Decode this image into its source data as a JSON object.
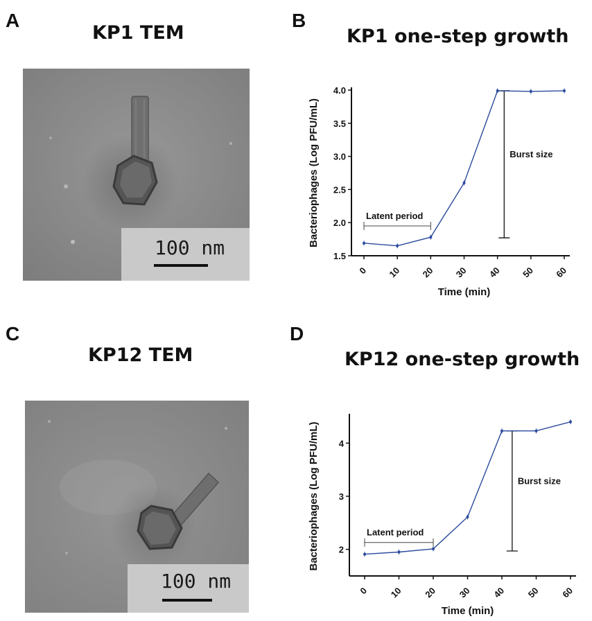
{
  "panels": {
    "a": {
      "letter": "A",
      "title": "KP1 TEM",
      "scale_label": "100  nm"
    },
    "b": {
      "letter": "B",
      "title": "KP1 one-step growth"
    },
    "c": {
      "letter": "C",
      "title": "KP12 TEM",
      "scale_label": "100  nm"
    },
    "d": {
      "letter": "D",
      "title": "KP12 one-step growth"
    }
  },
  "chart_data": [
    {
      "type": "line",
      "title": "KP1 one-step growth",
      "xlabel": "Time (min)",
      "ylabel": "Bacteriophages (Log PFU/mL)",
      "x": [
        0,
        10,
        20,
        30,
        40,
        50,
        60
      ],
      "x_tick_labels": [
        "0",
        "10",
        "20",
        "30",
        "40",
        "50",
        "60"
      ],
      "xlim": [
        0,
        60
      ],
      "ylim": [
        1.5,
        4.0
      ],
      "y_ticks": [
        1.5,
        2.0,
        2.5,
        3.0,
        3.5,
        4.0
      ],
      "y_tick_labels": [
        "1.5",
        "2.0",
        "2.5",
        "3.0",
        "3.5",
        "4.0"
      ],
      "series": [
        {
          "values": [
            1.69,
            1.65,
            1.78,
            2.6,
            3.99,
            3.98,
            3.99
          ],
          "color": "#2b4a9c"
        }
      ],
      "annotations": {
        "latent": {
          "label": "Latent period",
          "x_start": 0,
          "x_end": 20,
          "y": 1.95
        },
        "burst": {
          "label": "Burst size",
          "x": 42,
          "y_low": 1.77,
          "y_high": 3.99
        }
      },
      "grid": false
    },
    {
      "type": "line",
      "title": "KP12 one-step growth",
      "xlabel": "Time (min)",
      "ylabel": "Bacteriophages (Log PFU/mL)",
      "x": [
        0,
        10,
        20,
        30,
        40,
        50,
        60
      ],
      "x_tick_labels": [
        "0",
        "10",
        "20",
        "30",
        "40",
        "50",
        "60"
      ],
      "xlim": [
        0,
        60
      ],
      "ylim": [
        1.5,
        4.5
      ],
      "y_ticks": [
        2,
        3,
        4
      ],
      "y_tick_labels": [
        "2",
        "3",
        "4"
      ],
      "series": [
        {
          "values": [
            1.91,
            1.95,
            2.01,
            2.61,
            4.23,
            4.23,
            4.4
          ],
          "color": "#2b4a9c"
        }
      ],
      "annotations": {
        "latent": {
          "label": "Latent period",
          "x_start": 0,
          "x_end": 20,
          "y": 2.13
        },
        "burst": {
          "label": "Burst size",
          "x": 43,
          "y_low": 1.97,
          "y_high": 4.23
        }
      },
      "grid": false
    }
  ]
}
